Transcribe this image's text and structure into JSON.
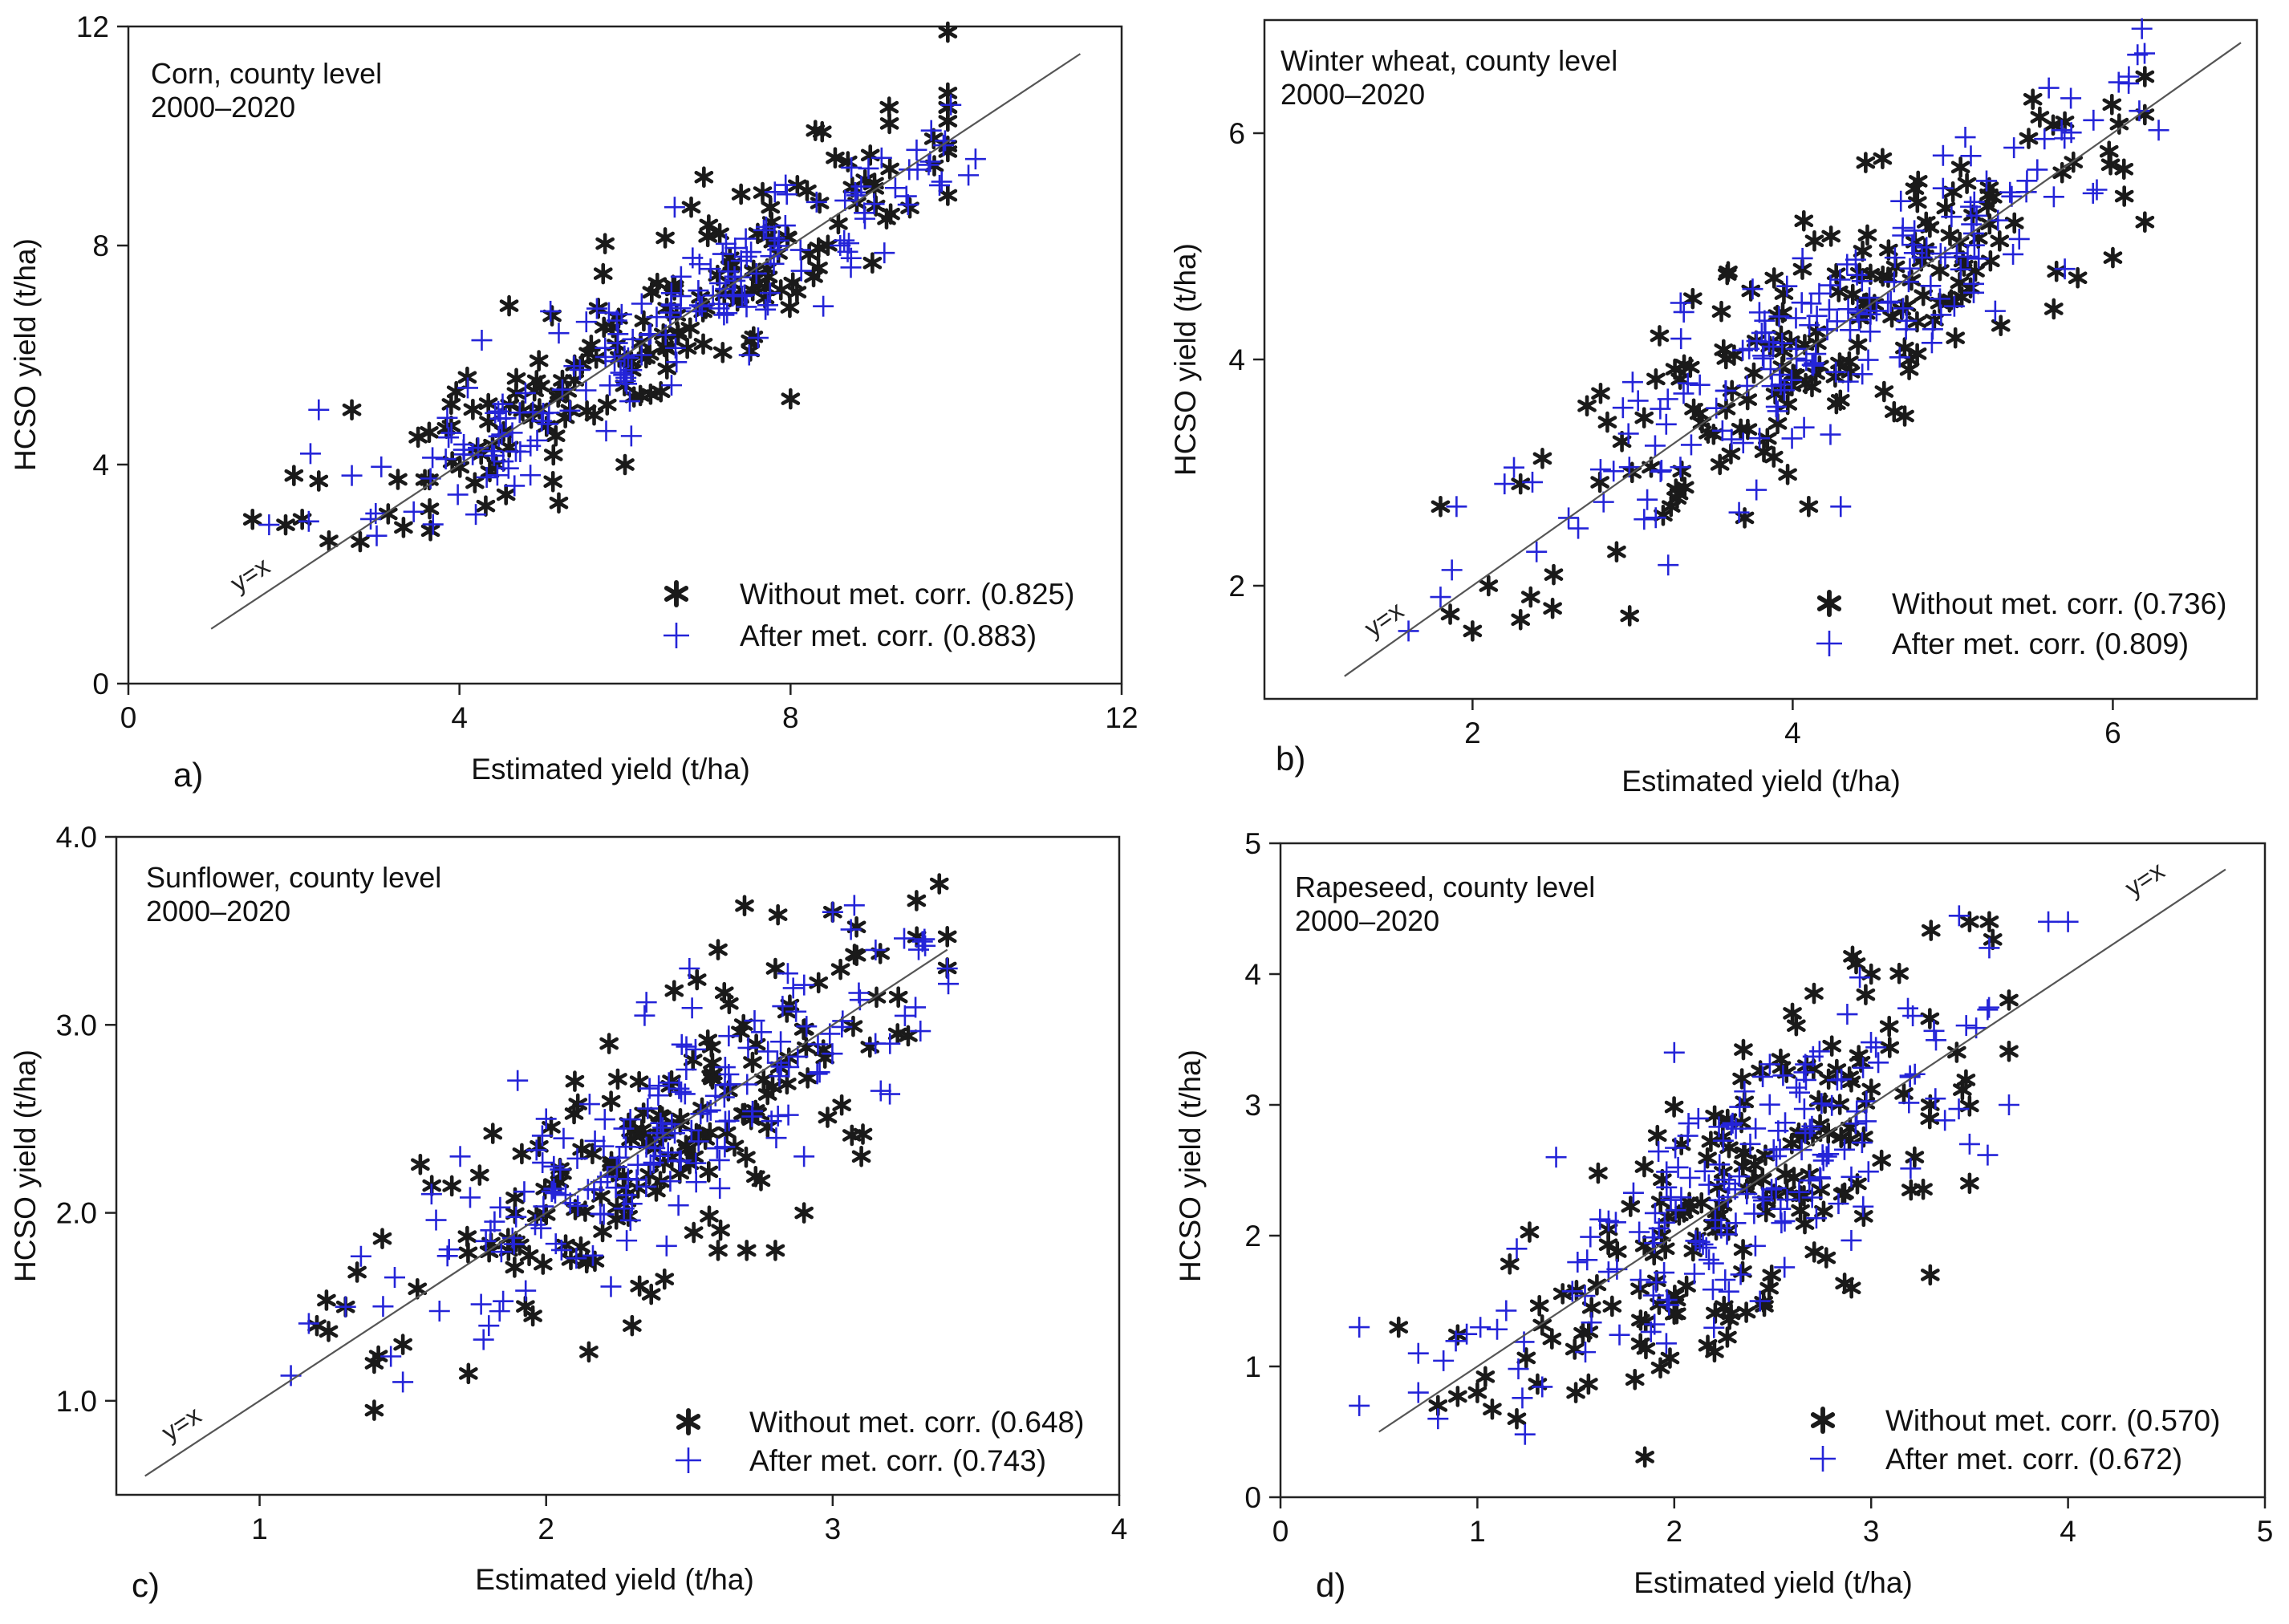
{
  "colors": {
    "without": "#1a1a1a",
    "after": "#2424d8",
    "axis": "#222222",
    "identity": "#555555"
  },
  "chart_data": [
    {
      "type": "scatter",
      "panel": "a)",
      "title_lines": [
        "Corn, county level",
        "2000–2020"
      ],
      "xlabel": "Estimated yield (t/ha)",
      "ylabel": "HCSO yield (t/ha)",
      "xlim": [
        0,
        12
      ],
      "ylim": [
        0,
        12
      ],
      "xticks": [
        0,
        4,
        8,
        12
      ],
      "xtick_labels": [
        "0",
        "4",
        "8",
        "12"
      ],
      "yticks": [
        0,
        4,
        8,
        12
      ],
      "ytick_labels": [
        "0",
        "4",
        "8",
        "12"
      ],
      "identity_line": {
        "label": "y=x",
        "from": 1.0,
        "to": 11.5
      },
      "legend": {
        "position": "bottom-right",
        "without": "Without met. corr. (0.825)",
        "after": "After met. corr. (0.883)"
      },
      "cloud": {
        "n": 170,
        "x_mean": 6.3,
        "x_sd": 1.7,
        "x_min": 1.4,
        "x_max": 9.9,
        "slope_without": 0.93,
        "slope_after": 0.95,
        "noise_without": 0.75,
        "noise_after": 0.55,
        "seed": 11
      },
      "series": [
        {
          "name": "Without met. corr. (0.825)",
          "marker": "asterisk",
          "points": [
            [
              1.5,
              3.0
            ],
            [
              1.9,
              2.9
            ],
            [
              2.0,
              3.8
            ],
            [
              2.1,
              3.0
            ],
            [
              2.3,
              3.7
            ],
            [
              2.7,
              5.0
            ],
            [
              3.5,
              4.5
            ],
            [
              3.9,
              5.1
            ],
            [
              5.2,
              3.3
            ],
            [
              6.0,
              4.0
            ],
            [
              7.2,
              7.1
            ],
            [
              8.2,
              9.0
            ],
            [
              8.3,
              10.1
            ],
            [
              8.9,
              9.2
            ],
            [
              9.2,
              9.4
            ],
            [
              8.0,
              5.2
            ],
            [
              4.6,
              6.9
            ],
            [
              6.8,
              8.7
            ]
          ]
        },
        {
          "name": "After met. corr. (0.883)",
          "marker": "plus",
          "points": [
            [
              1.7,
              2.9
            ],
            [
              2.2,
              4.2
            ],
            [
              2.3,
              5.0
            ],
            [
              2.7,
              3.8
            ],
            [
              3.0,
              2.7
            ],
            [
              4.1,
              5.4
            ],
            [
              5.2,
              6.4
            ],
            [
              6.2,
              6.0
            ],
            [
              7.5,
              6.0
            ],
            [
              8.6,
              8.0
            ],
            [
              9.1,
              9.6
            ],
            [
              9.7,
              10.1
            ],
            [
              9.8,
              9.1
            ],
            [
              9.4,
              8.9
            ],
            [
              5.1,
              6.8
            ],
            [
              6.6,
              8.7
            ]
          ]
        }
      ]
    },
    {
      "type": "scatter",
      "panel": "b)",
      "title_lines": [
        "Winter wheat, county level",
        "2000–2020"
      ],
      "xlabel": "Estimated yield (t/ha)",
      "ylabel": "HCSO yield (t/ha)",
      "xlim": [
        0.7,
        6.9
      ],
      "ylim": [
        1.0,
        7.0
      ],
      "xticks": [
        2,
        4,
        6
      ],
      "xtick_labels": [
        "2",
        "4",
        "6"
      ],
      "yticks": [
        2,
        4,
        6
      ],
      "ytick_labels": [
        "2",
        "4",
        "6"
      ],
      "identity_line": {
        "label": "y=x",
        "from": 1.2,
        "to": 6.8
      },
      "legend": {
        "position": "bottom-right",
        "without": "Without met. corr. (0.736)",
        "after": "After met. corr. (0.809)"
      },
      "cloud": {
        "n": 170,
        "x_mean": 4.3,
        "x_sd": 0.85,
        "x_min": 1.6,
        "x_max": 6.2,
        "slope_without": 0.95,
        "slope_after": 0.97,
        "noise_without": 0.55,
        "noise_after": 0.42,
        "seed": 23
      },
      "series": [
        {
          "name": "Without met. corr. (0.736)",
          "marker": "asterisk",
          "points": [
            [
              1.8,
              2.7
            ],
            [
              2.0,
              1.6
            ],
            [
              2.1,
              2.0
            ],
            [
              2.3,
              2.9
            ],
            [
              2.5,
              1.8
            ],
            [
              2.3,
              1.7
            ],
            [
              2.8,
              3.7
            ],
            [
              2.9,
              2.3
            ],
            [
              3.7,
              2.6
            ],
            [
              4.1,
              2.7
            ],
            [
              5.3,
              4.3
            ],
            [
              5.5,
              6.3
            ],
            [
              5.7,
              6.1
            ],
            [
              6.0,
              4.9
            ],
            [
              6.2,
              6.5
            ],
            [
              4.7,
              3.5
            ]
          ]
        },
        {
          "name": "After met. corr. (0.809)",
          "marker": "plus",
          "points": [
            [
              1.6,
              1.6
            ],
            [
              1.8,
              1.9
            ],
            [
              1.9,
              2.7
            ],
            [
              2.2,
              2.9
            ],
            [
              2.4,
              2.3
            ],
            [
              2.6,
              2.6
            ],
            [
              3.0,
              3.8
            ],
            [
              4.3,
              2.7
            ],
            [
              5.7,
              4.8
            ],
            [
              5.9,
              5.5
            ],
            [
              6.1,
              6.5
            ],
            [
              5.6,
              6.4
            ],
            [
              3.3,
              4.5
            ]
          ]
        }
      ]
    },
    {
      "type": "scatter",
      "panel": "c)",
      "title_lines": [
        "Sunflower, county level",
        "2000–2020"
      ],
      "xlabel": "Estimated yield (t/ha)",
      "ylabel": "HCSO yield (t/ha)",
      "xlim": [
        0.5,
        4.0
      ],
      "ylim": [
        0.5,
        4.0
      ],
      "xticks": [
        1,
        2,
        3,
        4
      ],
      "xtick_labels": [
        "1",
        "2",
        "3",
        "4"
      ],
      "yticks": [
        1.0,
        2.0,
        3.0,
        4.0
      ],
      "ytick_labels": [
        "1.0",
        "2.0",
        "3.0",
        "4.0"
      ],
      "identity_line": {
        "label": "y=x",
        "from": 0.6,
        "to": 3.4
      },
      "legend": {
        "position": "bottom-right",
        "without": "Without met. corr. (0.648)",
        "after": "After met. corr. (0.743)"
      },
      "cloud": {
        "n": 170,
        "x_mean": 2.45,
        "x_sd": 0.45,
        "x_min": 1.2,
        "x_max": 3.4,
        "slope_without": 0.92,
        "slope_after": 0.95,
        "noise_without": 0.33,
        "noise_after": 0.25,
        "seed": 37
      },
      "series": [
        {
          "name": "Without met. corr. (0.648)",
          "marker": "asterisk",
          "points": [
            [
              1.2,
              1.4
            ],
            [
              1.3,
              1.5
            ],
            [
              1.4,
              1.2
            ],
            [
              1.5,
              1.3
            ],
            [
              1.4,
              0.95
            ],
            [
              2.3,
              1.4
            ],
            [
              2.6,
              1.8
            ],
            [
              2.7,
              1.8
            ],
            [
              2.8,
              1.8
            ],
            [
              2.9,
              2.0
            ],
            [
              3.1,
              2.3
            ],
            [
              3.0,
              3.6
            ],
            [
              2.8,
              3.3
            ],
            [
              2.6,
              3.4
            ],
            [
              2.1,
              2.7
            ]
          ]
        },
        {
          "name": "After met. corr. (0.743)",
          "marker": "plus",
          "points": [
            [
              1.3,
              1.5
            ],
            [
              1.5,
              1.1
            ],
            [
              1.6,
              2.1
            ],
            [
              1.7,
              2.3
            ],
            [
              1.8,
              1.4
            ],
            [
              2.0,
              2.5
            ],
            [
              2.5,
              3.3
            ],
            [
              3.0,
              3.6
            ],
            [
              3.3,
              3.4
            ],
            [
              3.4,
              3.3
            ],
            [
              3.2,
              2.9
            ],
            [
              2.9,
              2.3
            ]
          ]
        }
      ]
    },
    {
      "type": "scatter",
      "panel": "d)",
      "title_lines": [
        "Rapeseed, county level",
        "2000–2020"
      ],
      "xlabel": "Estimated yield (t/ha)",
      "ylabel": "HCSO yield (t/ha)",
      "xlim": [
        0,
        5
      ],
      "ylim": [
        0,
        5
      ],
      "xticks": [
        0,
        1,
        2,
        3,
        4,
        5
      ],
      "xtick_labels": [
        "0",
        "1",
        "2",
        "3",
        "4",
        "5"
      ],
      "yticks": [
        0,
        1,
        2,
        3,
        4,
        5
      ],
      "ytick_labels": [
        "0",
        "1",
        "2",
        "3",
        "4",
        "5"
      ],
      "identity_line": {
        "label": "y=x",
        "from": 0.5,
        "to": 4.8
      },
      "legend": {
        "position": "bottom-right",
        "without": "Without met. corr. (0.570)",
        "after": "After met. corr. (0.672)"
      },
      "cloud": {
        "n": 170,
        "x_mean": 2.35,
        "x_sd": 0.55,
        "x_min": 0.9,
        "x_max": 3.7,
        "slope_without": 0.93,
        "slope_after": 0.96,
        "noise_without": 0.55,
        "noise_after": 0.43,
        "seed": 53
      },
      "series": [
        {
          "name": "Without met. corr. (0.570)",
          "marker": "asterisk",
          "points": [
            [
              0.6,
              1.3
            ],
            [
              0.8,
              0.7
            ],
            [
              1.0,
              0.8
            ],
            [
              1.2,
              0.6
            ],
            [
              1.5,
              0.8
            ],
            [
              1.8,
              0.9
            ],
            [
              2.9,
              1.6
            ],
            [
              3.3,
              1.7
            ],
            [
              3.5,
              2.4
            ],
            [
              3.5,
              4.4
            ],
            [
              3.6,
              4.4
            ],
            [
              3.0,
              4.0
            ],
            [
              3.3,
              3.0
            ],
            [
              2.6,
              3.7
            ],
            [
              2.0,
              1.4
            ]
          ]
        },
        {
          "name": "After met. corr. (0.672)",
          "marker": "plus",
          "points": [
            [
              0.4,
              0.7
            ],
            [
              0.4,
              1.3
            ],
            [
              0.7,
              1.1
            ],
            [
              0.7,
              0.8
            ],
            [
              0.8,
              0.6
            ],
            [
              1.4,
              2.6
            ],
            [
              1.2,
              1.9
            ],
            [
              3.9,
              4.4
            ],
            [
              4.0,
              4.4
            ],
            [
              3.7,
              3.0
            ],
            [
              3.6,
              4.2
            ],
            [
              3.5,
              2.7
            ],
            [
              2.0,
              3.4
            ]
          ]
        }
      ]
    }
  ]
}
